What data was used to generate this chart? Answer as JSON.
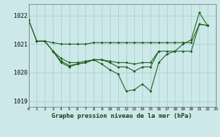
{
  "title": "Graphe pression niveau de la mer (hPa)",
  "bg_color": "#cce8e8",
  "grid_color": "#aad0d0",
  "line_color": "#1a5c1a",
  "xlim": [
    0,
    23
  ],
  "ylim": [
    1018.8,
    1022.4
  ],
  "yticks": [
    1019,
    1020,
    1021,
    1022
  ],
  "xtick_labels": [
    "0",
    "1",
    "2",
    "3",
    "4",
    "5",
    "6",
    "7",
    "8",
    "9",
    "10",
    "11",
    "12",
    "13",
    "14",
    "15",
    "16",
    "17",
    "18",
    "19",
    "20",
    "21",
    "22",
    "23"
  ],
  "s1_x": [
    0,
    1,
    2,
    3,
    4,
    5,
    6,
    7,
    8,
    9,
    10,
    11,
    12,
    13,
    14,
    15,
    16,
    17,
    18,
    19,
    20,
    21,
    22
  ],
  "s1_y": [
    1021.85,
    1021.1,
    1021.1,
    1021.05,
    1021.0,
    1021.0,
    1021.0,
    1021.0,
    1021.05,
    1021.05,
    1021.05,
    1021.05,
    1021.05,
    1021.05,
    1021.05,
    1021.05,
    1021.05,
    1021.05,
    1021.05,
    1021.05,
    1021.05,
    1021.7,
    1021.65
  ],
  "s2_x": [
    1,
    2,
    3,
    4,
    5,
    6,
    7,
    8,
    9,
    10,
    11,
    12,
    13,
    14,
    15,
    16,
    17,
    18,
    19,
    20,
    21,
    22
  ],
  "s2_y": [
    1021.1,
    1021.1,
    1020.75,
    1020.5,
    1020.35,
    1020.35,
    1020.4,
    1020.45,
    1020.45,
    1020.4,
    1020.35,
    1020.35,
    1020.3,
    1020.35,
    1020.35,
    1020.75,
    1020.75,
    1020.75,
    1020.75,
    1020.75,
    1021.7,
    1021.65
  ],
  "s3_x": [
    0,
    1,
    2,
    3,
    4,
    5,
    6,
    7,
    8,
    9,
    10,
    11,
    12,
    13,
    14,
    15,
    16,
    17,
    18,
    19,
    20,
    21,
    22
  ],
  "s3_y": [
    1021.85,
    1021.1,
    1021.1,
    1020.75,
    1020.35,
    1020.2,
    1020.3,
    1020.35,
    1020.45,
    1020.3,
    1020.1,
    1019.95,
    1019.35,
    1019.4,
    1019.6,
    1019.35,
    1020.35,
    1020.65,
    1020.75,
    1021.0,
    1021.15,
    1022.1,
    1021.65
  ],
  "s4_x": [
    3,
    4,
    5,
    6,
    7,
    8,
    9,
    10,
    11,
    12,
    13,
    14,
    15,
    16
  ],
  "s4_y": [
    1020.75,
    1020.4,
    1020.25,
    1020.3,
    1020.35,
    1020.45,
    1020.45,
    1020.35,
    1020.2,
    1020.2,
    1020.05,
    1020.2,
    1020.2,
    1020.75
  ]
}
